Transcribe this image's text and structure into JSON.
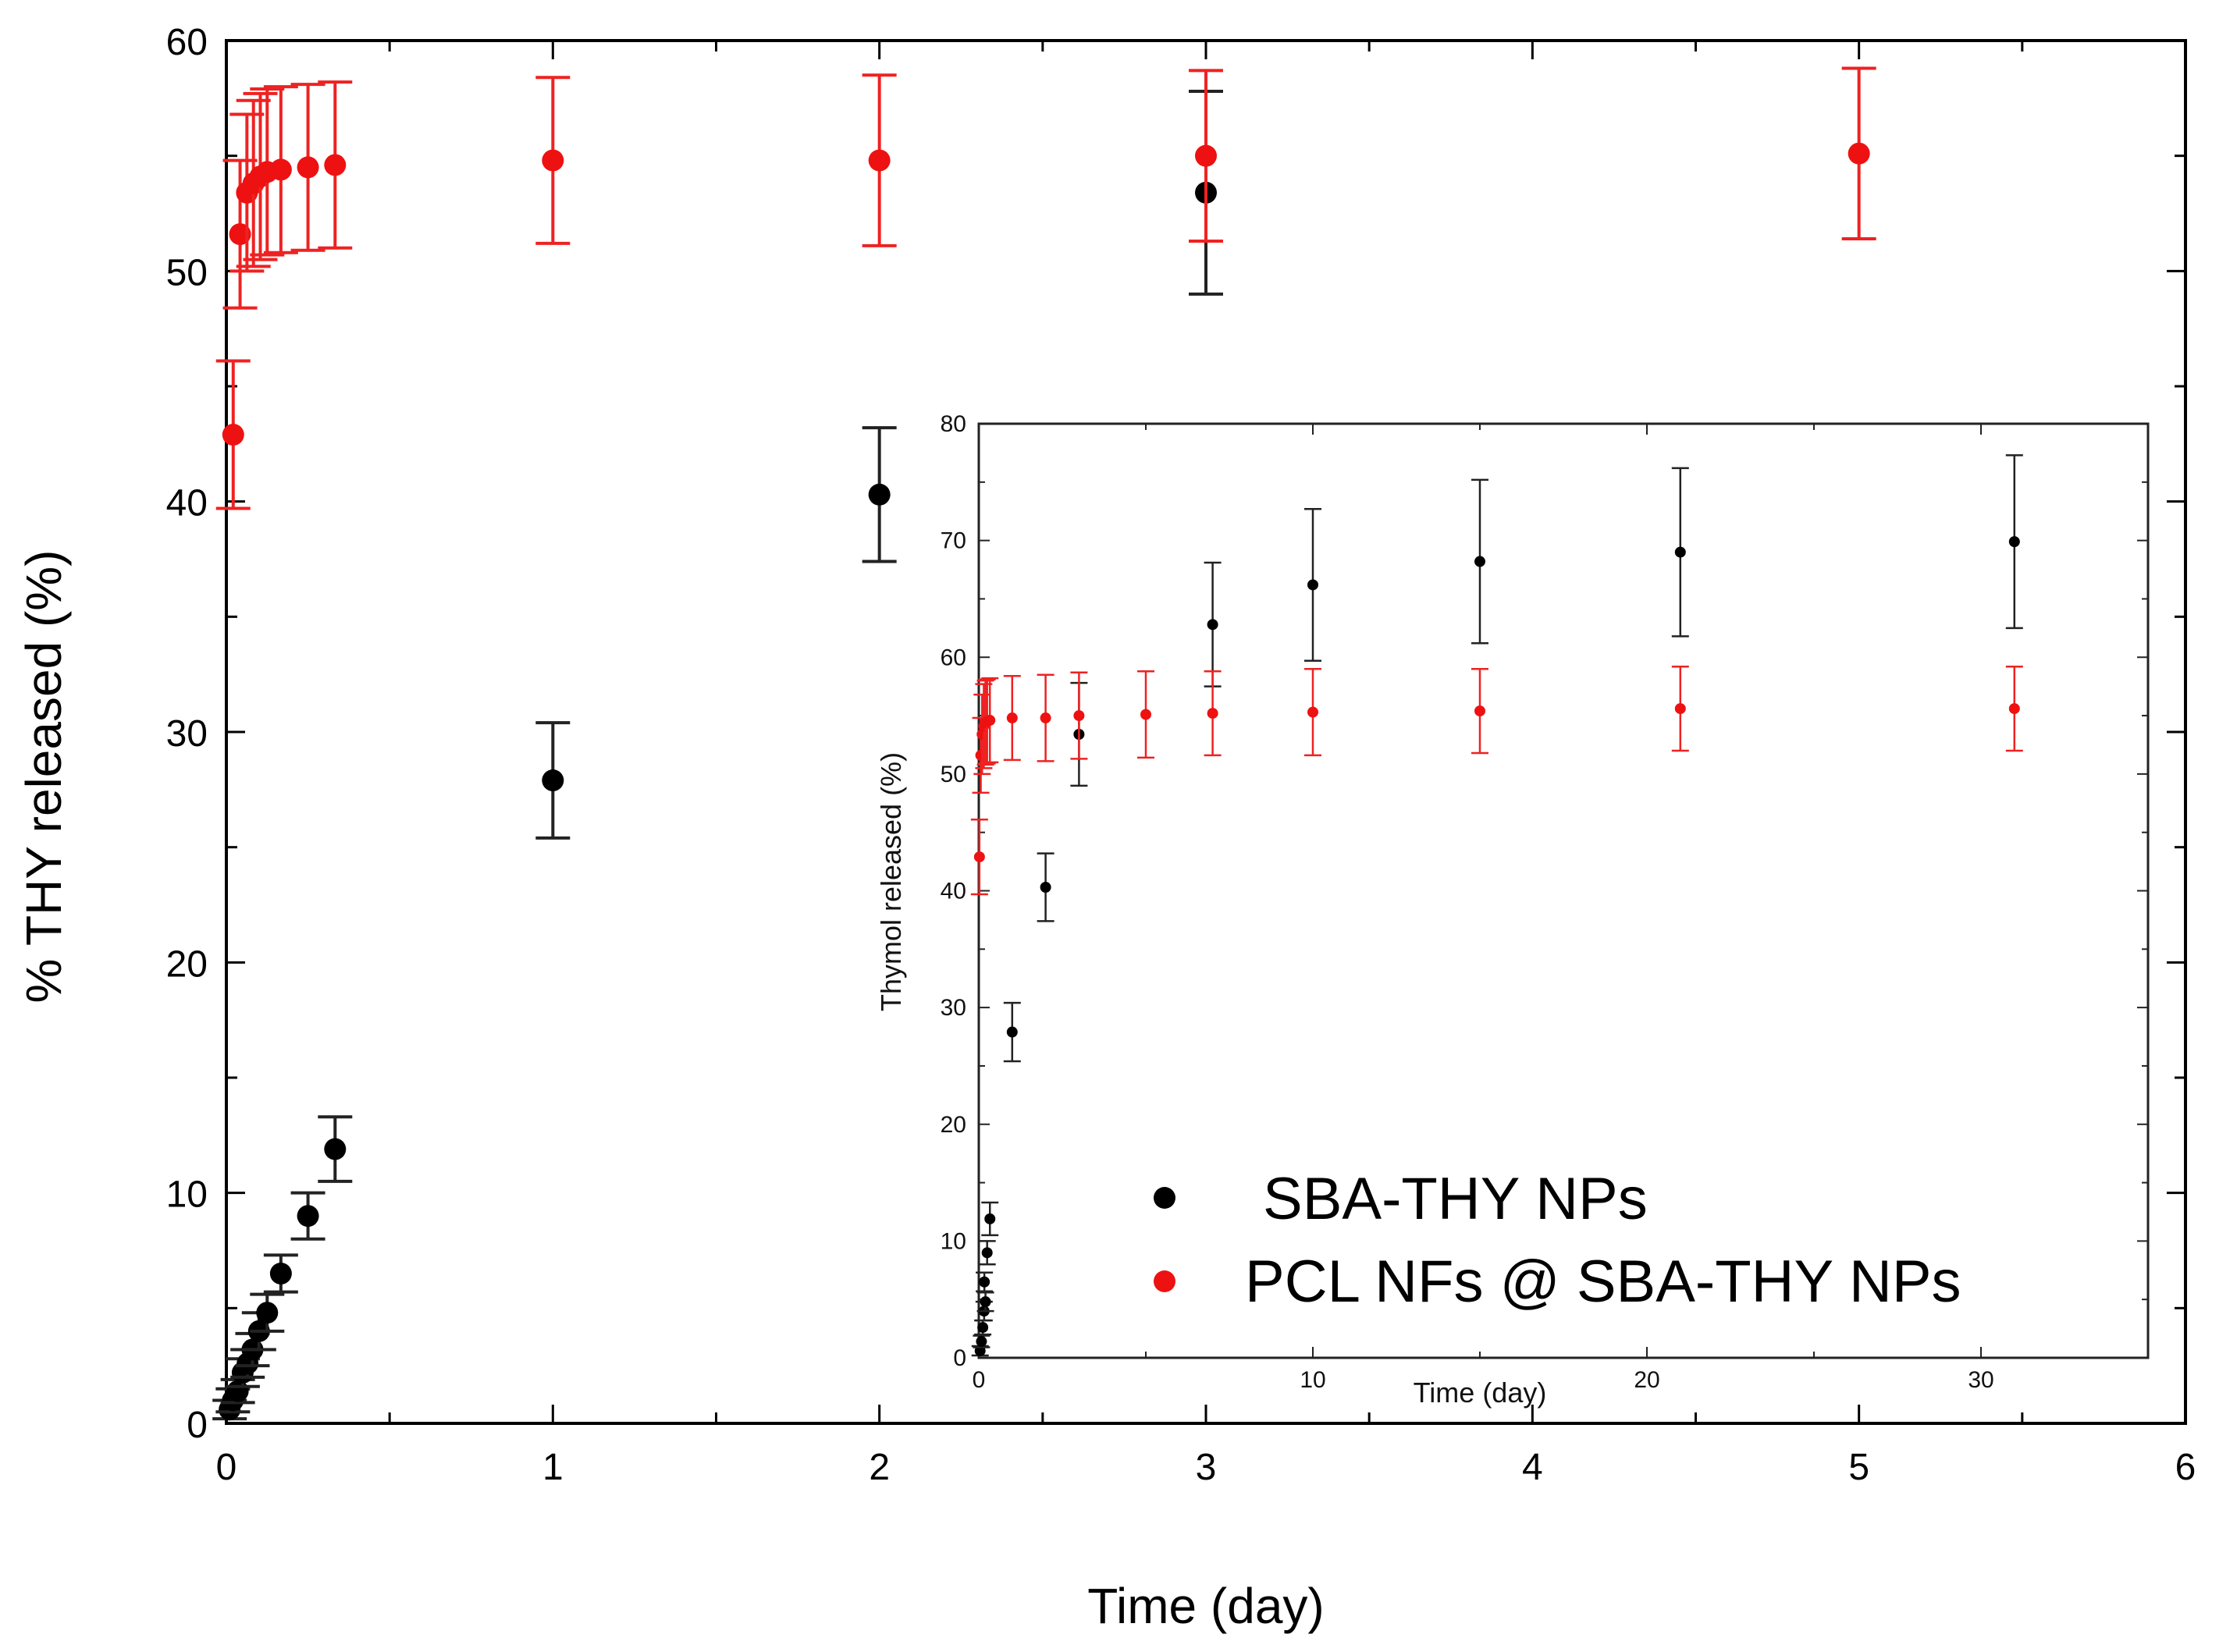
{
  "colors": {
    "series_black": "#000000",
    "series_red": "#ee1111",
    "errorbar_black": "#222222",
    "errorbar_red": "#ee2222"
  },
  "legend": {
    "items": [
      {
        "label": "SBA-THY NPs",
        "color": "#000000"
      },
      {
        "label": "PCL NFs @ SBA-THY NPs",
        "color": "#ee1111"
      }
    ],
    "placement": "bottom-right of inset"
  },
  "chart_data": [
    {
      "type": "scatter",
      "panel": "main",
      "xlabel": "Time (day)",
      "ylabel": "% THY released (%)",
      "xlim": [
        0,
        6
      ],
      "ylim": [
        0,
        60
      ],
      "xticks": [
        0,
        1,
        2,
        3,
        4,
        5,
        6
      ],
      "yticks": [
        0,
        10,
        20,
        30,
        40,
        50,
        60
      ],
      "series": [
        {
          "name": "SBA-THY NPs",
          "color": "#000000",
          "points": [
            {
              "x": 0.01,
              "y": 0.6,
              "err": 0.4
            },
            {
              "x": 0.02,
              "y": 1.0,
              "err": 0.5
            },
            {
              "x": 0.035,
              "y": 1.4,
              "err": 0.5
            },
            {
              "x": 0.05,
              "y": 2.2,
              "err": 0.6
            },
            {
              "x": 0.065,
              "y": 2.6,
              "err": 0.6
            },
            {
              "x": 0.08,
              "y": 3.2,
              "err": 0.7
            },
            {
              "x": 0.1,
              "y": 4.0,
              "err": 0.8
            },
            {
              "x": 0.125,
              "y": 4.8,
              "err": 0.8
            },
            {
              "x": 0.167,
              "y": 6.5,
              "err": 0.8
            },
            {
              "x": 0.25,
              "y": 9.0,
              "err": 1.0
            },
            {
              "x": 0.333,
              "y": 11.9,
              "err": 1.4
            },
            {
              "x": 1,
              "y": 27.9,
              "err": 2.5
            },
            {
              "x": 2,
              "y": 40.3,
              "err": 2.9
            },
            {
              "x": 3,
              "y": 53.4,
              "err": 4.4
            }
          ]
        },
        {
          "name": "PCL NFs @ SBA-THY NPs",
          "color": "#ee1111",
          "points": [
            {
              "x": 0.021,
              "y": 42.9,
              "err": 3.2
            },
            {
              "x": 0.042,
              "y": 51.6,
              "err": 3.2
            },
            {
              "x": 0.063,
              "y": 53.4,
              "err": 3.4
            },
            {
              "x": 0.083,
              "y": 53.8,
              "err": 3.6
            },
            {
              "x": 0.104,
              "y": 54.1,
              "err": 3.6
            },
            {
              "x": 0.125,
              "y": 54.3,
              "err": 3.6
            },
            {
              "x": 0.167,
              "y": 54.4,
              "err": 3.6
            },
            {
              "x": 0.25,
              "y": 54.5,
              "err": 3.6
            },
            {
              "x": 0.333,
              "y": 54.6,
              "err": 3.6
            },
            {
              "x": 1,
              "y": 54.8,
              "err": 3.6
            },
            {
              "x": 2,
              "y": 54.8,
              "err": 3.7
            },
            {
              "x": 3,
              "y": 55.0,
              "err": 3.7
            },
            {
              "x": 5,
              "y": 55.1,
              "err": 3.7
            }
          ]
        }
      ]
    },
    {
      "type": "scatter",
      "panel": "inset",
      "xlabel": "Time (day)",
      "ylabel": "Thymol released (%)",
      "xlim": [
        0,
        35
      ],
      "ylim": [
        0,
        80
      ],
      "xticks": [
        0,
        10,
        20,
        30
      ],
      "yticks": [
        0,
        10,
        20,
        30,
        40,
        50,
        60,
        70,
        80
      ],
      "series": [
        {
          "name": "SBA-THY NPs",
          "color": "#000000",
          "points": [
            {
              "x": 0.04,
              "y": 0.6,
              "err": 0.4
            },
            {
              "x": 0.08,
              "y": 1.4,
              "err": 0.5
            },
            {
              "x": 0.12,
              "y": 2.6,
              "err": 0.6
            },
            {
              "x": 0.16,
              "y": 4.0,
              "err": 0.8
            },
            {
              "x": 0.2,
              "y": 4.8,
              "err": 0.8
            },
            {
              "x": 0.167,
              "y": 6.5,
              "err": 0.8
            },
            {
              "x": 0.25,
              "y": 9.0,
              "err": 1.0
            },
            {
              "x": 0.333,
              "y": 11.9,
              "err": 1.4
            },
            {
              "x": 1,
              "y": 27.9,
              "err": 2.5
            },
            {
              "x": 2,
              "y": 40.3,
              "err": 2.9
            },
            {
              "x": 3,
              "y": 53.4,
              "err": 4.4
            },
            {
              "x": 7,
              "y": 62.8,
              "err": 5.3
            },
            {
              "x": 10,
              "y": 66.2,
              "err": 6.5
            },
            {
              "x": 15,
              "y": 68.2,
              "err": 7.0
            },
            {
              "x": 21,
              "y": 69.0,
              "err": 7.2
            },
            {
              "x": 31,
              "y": 69.9,
              "err": 7.4
            }
          ]
        },
        {
          "name": "PCL NFs @ SBA-THY NPs",
          "color": "#ee1111",
          "points": [
            {
              "x": 0.02,
              "y": 42.9,
              "err": 3.2
            },
            {
              "x": 0.06,
              "y": 51.6,
              "err": 3.2
            },
            {
              "x": 0.1,
              "y": 53.4,
              "err": 3.4
            },
            {
              "x": 0.15,
              "y": 54.1,
              "err": 3.6
            },
            {
              "x": 0.2,
              "y": 54.4,
              "err": 3.6
            },
            {
              "x": 0.25,
              "y": 54.5,
              "err": 3.6
            },
            {
              "x": 0.333,
              "y": 54.6,
              "err": 3.6
            },
            {
              "x": 1,
              "y": 54.8,
              "err": 3.6
            },
            {
              "x": 2,
              "y": 54.8,
              "err": 3.7
            },
            {
              "x": 3,
              "y": 55.0,
              "err": 3.7
            },
            {
              "x": 5,
              "y": 55.1,
              "err": 3.7
            },
            {
              "x": 7,
              "y": 55.2,
              "err": 3.6
            },
            {
              "x": 10,
              "y": 55.3,
              "err": 3.7
            },
            {
              "x": 15,
              "y": 55.4,
              "err": 3.6
            },
            {
              "x": 21,
              "y": 55.6,
              "err": 3.6
            },
            {
              "x": 31,
              "y": 55.6,
              "err": 3.6
            }
          ]
        }
      ]
    }
  ]
}
